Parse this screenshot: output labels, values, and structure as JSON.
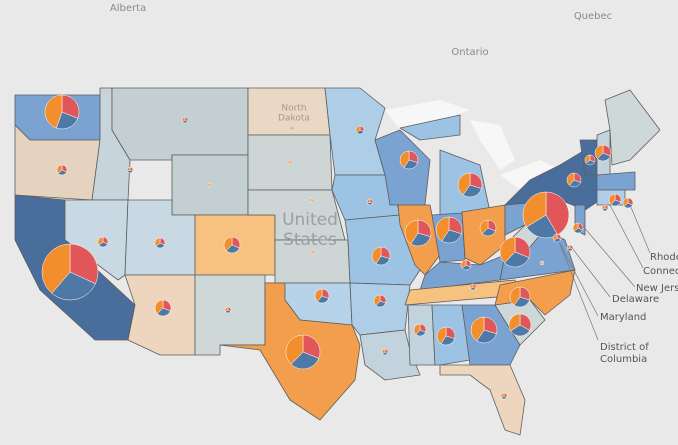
{
  "map": {
    "labels": {
      "alberta": "Alberta",
      "quebec": "Quebec",
      "ontario": "Ontario",
      "country": [
        "United",
        "States"
      ],
      "north_dakota": [
        "North",
        "Dakota"
      ]
    },
    "callouts": [
      "Rhode Island",
      "Connecticut",
      "New Jersey",
      "Delaware",
      "Maryland",
      [
        "District of",
        "Columbia"
      ]
    ],
    "slice_colors": [
      "#e15759",
      "#4e79a7",
      "#f28e2b"
    ],
    "pies": [
      [
        90,
        70,
        129
      ],
      [
        8,
        8,
        9
      ],
      [
        250,
        230,
        304
      ],
      [
        8,
        8,
        9
      ],
      [
        3,
        3,
        3
      ],
      [
        3,
        3,
        3
      ],
      [
        1,
        1,
        2
      ],
      [
        8,
        8,
        9
      ],
      [
        20,
        20,
        24
      ],
      [
        20,
        20,
        24
      ],
      [
        3,
        3,
        3
      ],
      [
        1,
        1,
        2
      ],
      [
        1,
        1,
        2
      ],
      [
        1,
        1,
        2
      ],
      [
        1,
        1,
        2
      ],
      [
        15,
        15,
        19
      ],
      [
        90,
        90,
        109
      ],
      [
        5,
        5,
        6
      ],
      [
        3,
        3,
        3
      ],
      [
        24,
        24,
        33
      ],
      [
        11,
        11,
        14
      ],
      [
        3,
        3,
        3
      ],
      [
        24,
        24,
        33
      ],
      [
        50,
        50,
        69
      ],
      [
        43,
        43,
        58
      ],
      [
        50,
        50,
        69
      ],
      [
        20,
        20,
        24
      ],
      [
        8,
        8,
        9
      ],
      [
        3,
        3,
        3
      ],
      [
        11,
        11,
        14
      ],
      [
        24,
        24,
        33
      ],
      [
        50,
        50,
        69
      ],
      [
        3,
        3,
        3
      ],
      [
        40,
        40,
        41
      ],
      [
        30,
        30,
        40
      ],
      [
        1,
        1,
        2
      ],
      [
        70,
        70,
        85
      ],
      [
        220,
        130,
        179
      ],
      [
        15,
        15,
        19
      ],
      [
        8,
        8,
        9
      ],
      [
        5,
        5,
        6
      ],
      [
        3,
        3,
        3
      ],
      [
        8,
        8,
        9
      ],
      [
        20,
        20,
        24
      ],
      [
        11,
        11,
        14
      ],
      [
        8,
        8,
        9
      ],
      [
        3,
        3,
        3
      ]
    ]
  }
}
